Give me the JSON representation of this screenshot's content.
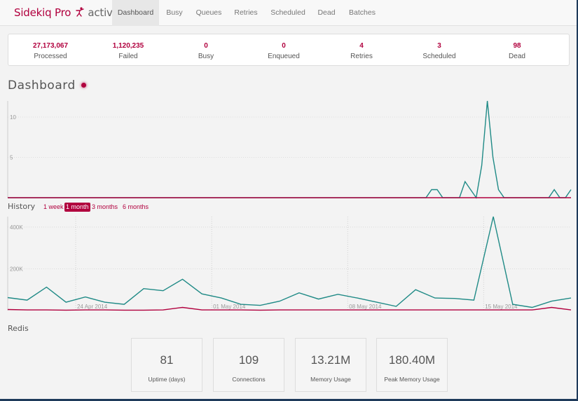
{
  "brand": {
    "name": "Sidekiq Pro",
    "status": "active"
  },
  "nav": [
    {
      "label": "Dashboard",
      "active": true
    },
    {
      "label": "Busy"
    },
    {
      "label": "Queues"
    },
    {
      "label": "Retries"
    },
    {
      "label": "Scheduled"
    },
    {
      "label": "Dead"
    },
    {
      "label": "Batches"
    }
  ],
  "summary": [
    {
      "value": "27,173,067",
      "label": "Processed"
    },
    {
      "value": "1,120,235",
      "label": "Failed"
    },
    {
      "value": "0",
      "label": "Busy"
    },
    {
      "value": "0",
      "label": "Enqueued"
    },
    {
      "value": "4",
      "label": "Retries"
    },
    {
      "value": "3",
      "label": "Scheduled"
    },
    {
      "value": "98",
      "label": "Dead"
    }
  ],
  "dashboard": {
    "title": "Dashboard"
  },
  "history": {
    "title": "History",
    "ranges": [
      "1 week",
      "1 month",
      "3 months",
      "6 months"
    ],
    "active_range": "1 month"
  },
  "redis": {
    "title": "Redis",
    "stats": [
      {
        "value": "81",
        "label": "Uptime (days)"
      },
      {
        "value": "109",
        "label": "Connections"
      },
      {
        "value": "13.21M",
        "label": "Memory Usage"
      },
      {
        "value": "180.40M",
        "label": "Peak Memory Usage"
      }
    ]
  },
  "colors": {
    "brand": "#b1003e",
    "processed": "#1f8a86",
    "failed": "#b1003e"
  },
  "chart_data": [
    {
      "type": "line",
      "name": "realtime",
      "ylim": [
        0,
        12
      ],
      "yticks": [
        5,
        10
      ],
      "series": [
        {
          "values": [
            0,
            0,
            0,
            0,
            0,
            0,
            0,
            0,
            0,
            0,
            0,
            0,
            0,
            0,
            0,
            0,
            0,
            0,
            0,
            0,
            0,
            0,
            0,
            0,
            0,
            0,
            0,
            0,
            0,
            0,
            0,
            0,
            0,
            0,
            0,
            0,
            0,
            0,
            0,
            0,
            0,
            0,
            0,
            0,
            0,
            0,
            0,
            0,
            0,
            0,
            0,
            0,
            0,
            0,
            0,
            0,
            0,
            0,
            0,
            0,
            0,
            0,
            0,
            0,
            0,
            0,
            0,
            0,
            0,
            0,
            0,
            0,
            0,
            0,
            0,
            0,
            1,
            1,
            0,
            0,
            0,
            0,
            2,
            1,
            0,
            4,
            12,
            5,
            1,
            0,
            0,
            0,
            0,
            0,
            0,
            0,
            0,
            0,
            1,
            0,
            0,
            1
          ]
        },
        {
          "values": [
            0,
            0,
            0,
            0,
            0,
            0,
            0,
            0,
            0,
            0,
            0,
            0,
            0,
            0,
            0,
            0,
            0,
            0,
            0,
            0,
            0,
            0,
            0,
            0,
            0,
            0,
            0,
            0,
            0,
            0,
            0,
            0,
            0,
            0,
            0,
            0,
            0,
            0,
            0,
            0,
            0,
            0,
            0,
            0,
            0,
            0,
            0,
            0,
            0,
            0,
            0,
            0,
            0,
            0,
            0,
            0,
            0,
            0,
            0,
            0,
            0,
            0,
            0,
            0,
            0,
            0,
            0,
            0,
            0,
            0,
            0,
            0,
            0,
            0,
            0,
            0,
            0,
            0,
            0,
            0,
            0,
            0,
            0,
            0,
            0,
            0,
            0,
            0,
            0,
            0,
            0,
            0,
            0,
            0,
            0,
            0,
            0,
            0,
            0,
            0,
            0,
            0
          ]
        }
      ]
    },
    {
      "type": "line",
      "name": "history",
      "ylim": [
        0,
        450000
      ],
      "yticks": [
        {
          "value": 200000,
          "label": "200K"
        },
        {
          "value": 400000,
          "label": "400K"
        }
      ],
      "date_markers": [
        {
          "index": 3.5,
          "label": "24 Apr 2014"
        },
        {
          "index": 10.5,
          "label": "01 May 2014"
        },
        {
          "index": 17.5,
          "label": "08 May 2014"
        },
        {
          "index": 24.5,
          "label": "15 May 2014"
        }
      ],
      "series": [
        {
          "values": [
            62000,
            50000,
            112000,
            40000,
            65000,
            40000,
            30000,
            105000,
            95000,
            150000,
            80000,
            60000,
            30000,
            25000,
            45000,
            85000,
            55000,
            78000,
            60000,
            40000,
            20000,
            100000,
            60000,
            58000,
            50000,
            450000,
            30000,
            15000,
            45000,
            60000
          ]
        },
        {
          "values": [
            5000,
            3000,
            3000,
            2000,
            3000,
            3000,
            2000,
            2000,
            3000,
            15000,
            3000,
            3000,
            3000,
            2000,
            3000,
            3000,
            3000,
            3000,
            3000,
            3000,
            3000,
            3000,
            3000,
            3000,
            3000,
            3000,
            3000,
            3000,
            15000,
            3000
          ]
        }
      ]
    }
  ]
}
